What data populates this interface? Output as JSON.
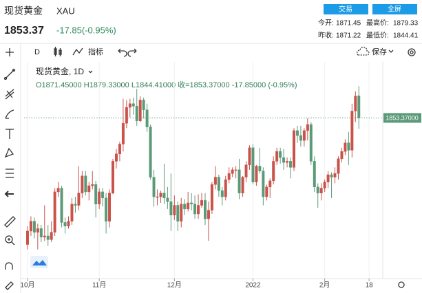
{
  "header": {
    "title": "现货黄金",
    "symbol": "XAU",
    "price": "1853.37",
    "change": "-17.85(-0.95%)",
    "buttons": [
      "交易",
      "全屏"
    ],
    "stats": [
      {
        "label": "今开:",
        "value": "1871.45"
      },
      {
        "label": "最高价:",
        "value": "1879.33"
      },
      {
        "label": "昨收:",
        "value": "1871.22"
      },
      {
        "label": "最低价:",
        "value": "1844.41"
      }
    ]
  },
  "toolbar": {
    "interval": "D",
    "indicator": "指标",
    "save": "保存"
  },
  "chart_data": {
    "type": "candlestick",
    "legend_title": "现货黄金, 1D",
    "legend_ohlc": "O1871.45000 H1879.33000 L1844.41000 收=1853.37000 -17.85000 (-0.95%)",
    "up_color": "#c9534a",
    "down_color": "#5b9a78",
    "last_price": {
      "value": 1853.37,
      "label": "1853.37000"
    },
    "ylim": [
      1725,
      1898
    ],
    "xlim": [
      -1,
      104
    ],
    "xticks": [
      {
        "value": 0,
        "label": "10月"
      },
      {
        "value": 21,
        "label": "11月"
      },
      {
        "value": 43,
        "label": "12月"
      },
      {
        "value": 66,
        "label": "2022"
      },
      {
        "value": 87,
        "label": "2月"
      },
      {
        "value": 100,
        "label": "18"
      }
    ],
    "grid": true,
    "ohlc": [
      [
        1750,
        1765,
        1746,
        1761
      ],
      [
        1761,
        1773,
        1757,
        1769
      ],
      [
        1769,
        1772,
        1755,
        1760
      ],
      [
        1760,
        1767,
        1746,
        1763
      ],
      [
        1763,
        1766,
        1752,
        1756
      ],
      [
        1756,
        1782,
        1753,
        1757
      ],
      [
        1757,
        1766,
        1749,
        1754
      ],
      [
        1754,
        1769,
        1752,
        1760
      ],
      [
        1760,
        1796,
        1757,
        1793
      ],
      [
        1793,
        1801,
        1789,
        1796
      ],
      [
        1796,
        1798,
        1764,
        1768
      ],
      [
        1768,
        1772,
        1759,
        1765
      ],
      [
        1765,
        1773,
        1763,
        1769
      ],
      [
        1769,
        1788,
        1766,
        1783
      ],
      [
        1783,
        1789,
        1776,
        1782
      ],
      [
        1782,
        1814,
        1778,
        1792
      ],
      [
        1792,
        1810,
        1788,
        1806
      ],
      [
        1806,
        1810,
        1790,
        1793
      ],
      [
        1793,
        1801,
        1786,
        1798
      ],
      [
        1798,
        1810,
        1795,
        1799
      ],
      [
        1799,
        1802,
        1772,
        1783
      ],
      [
        1783,
        1796,
        1779,
        1793
      ],
      [
        1793,
        1796,
        1781,
        1788
      ],
      [
        1788,
        1792,
        1759,
        1769
      ],
      [
        1769,
        1795,
        1764,
        1792
      ],
      [
        1792,
        1820,
        1791,
        1818
      ],
      [
        1818,
        1828,
        1812,
        1824
      ],
      [
        1824,
        1834,
        1818,
        1832
      ],
      [
        1832,
        1869,
        1826,
        1849
      ],
      [
        1849,
        1868,
        1845,
        1862
      ],
      [
        1862,
        1869,
        1854,
        1865
      ],
      [
        1865,
        1870,
        1856,
        1863
      ],
      [
        1863,
        1877,
        1847,
        1851
      ],
      [
        1851,
        1871,
        1850,
        1868
      ],
      [
        1868,
        1870,
        1853,
        1860
      ],
      [
        1860,
        1865,
        1842,
        1846
      ],
      [
        1846,
        1848,
        1803,
        1805
      ],
      [
        1805,
        1811,
        1781,
        1789
      ],
      [
        1789,
        1795,
        1782,
        1789
      ],
      [
        1789,
        1794,
        1784,
        1792
      ],
      [
        1792,
        1816,
        1783,
        1788
      ],
      [
        1788,
        1797,
        1779,
        1785
      ],
      [
        1785,
        1808,
        1761,
        1774
      ],
      [
        1774,
        1790,
        1770,
        1782
      ],
      [
        1782,
        1785,
        1761,
        1769
      ],
      [
        1769,
        1788,
        1764,
        1783
      ],
      [
        1783,
        1787,
        1774,
        1779
      ],
      [
        1779,
        1793,
        1777,
        1784
      ],
      [
        1784,
        1792,
        1778,
        1783
      ],
      [
        1783,
        1790,
        1771,
        1775
      ],
      [
        1775,
        1791,
        1771,
        1782
      ],
      [
        1782,
        1792,
        1780,
        1786
      ],
      [
        1786,
        1792,
        1766,
        1771
      ],
      [
        1771,
        1785,
        1753,
        1778
      ],
      [
        1778,
        1801,
        1775,
        1799
      ],
      [
        1799,
        1814,
        1795,
        1805
      ],
      [
        1805,
        1807,
        1789,
        1794
      ],
      [
        1794,
        1797,
        1782,
        1789
      ],
      [
        1789,
        1806,
        1786,
        1803
      ],
      [
        1803,
        1813,
        1800,
        1808
      ],
      [
        1808,
        1813,
        1805,
        1811
      ],
      [
        1811,
        1814,
        1804,
        1811
      ],
      [
        1811,
        1820,
        1787,
        1792
      ],
      [
        1792,
        1806,
        1789,
        1805
      ],
      [
        1805,
        1818,
        1801,
        1815
      ],
      [
        1815,
        1831,
        1811,
        1829
      ],
      [
        1829,
        1832,
        1799,
        1801
      ],
      [
        1801,
        1815,
        1798,
        1814
      ],
      [
        1814,
        1829,
        1808,
        1810
      ],
      [
        1810,
        1813,
        1782,
        1789
      ],
      [
        1789,
        1799,
        1786,
        1797
      ],
      [
        1797,
        1804,
        1788,
        1802
      ],
      [
        1802,
        1822,
        1799,
        1818
      ],
      [
        1818,
        1829,
        1815,
        1826
      ],
      [
        1826,
        1829,
        1816,
        1821
      ],
      [
        1821,
        1828,
        1811,
        1817
      ],
      [
        1817,
        1821,
        1813,
        1818
      ],
      [
        1818,
        1821,
        1804,
        1813
      ],
      [
        1813,
        1845,
        1810,
        1843
      ],
      [
        1843,
        1847,
        1833,
        1839
      ],
      [
        1839,
        1847,
        1830,
        1835
      ],
      [
        1835,
        1845,
        1830,
        1843
      ],
      [
        1843,
        1853,
        1835,
        1848
      ],
      [
        1848,
        1850,
        1815,
        1818
      ],
      [
        1818,
        1822,
        1793,
        1797
      ],
      [
        1797,
        1800,
        1780,
        1792
      ],
      [
        1792,
        1800,
        1786,
        1796
      ],
      [
        1796,
        1803,
        1793,
        1801
      ],
      [
        1801,
        1810,
        1796,
        1807
      ],
      [
        1807,
        1809,
        1788,
        1805
      ],
      [
        1805,
        1813,
        1800,
        1808
      ],
      [
        1808,
        1822,
        1803,
        1820
      ],
      [
        1820,
        1829,
        1817,
        1826
      ],
      [
        1826,
        1836,
        1823,
        1833
      ],
      [
        1833,
        1842,
        1815,
        1827
      ],
      [
        1827,
        1865,
        1821,
        1859
      ],
      [
        1859,
        1875,
        1850,
        1871.22
      ],
      [
        1871.45,
        1879.33,
        1844.41,
        1853.37
      ]
    ]
  }
}
